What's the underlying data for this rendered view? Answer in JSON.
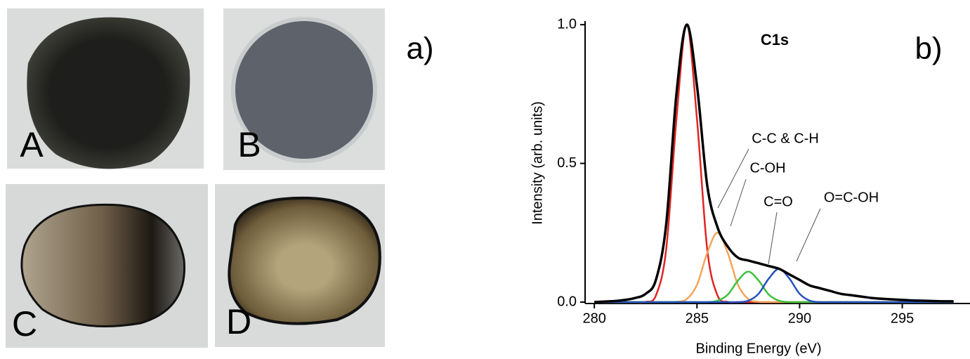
{
  "photos": {
    "panel_label": "a)",
    "samples": [
      "A",
      "B",
      "C",
      "D"
    ]
  },
  "chart_data": {
    "type": "line",
    "title": "C1s",
    "panel_label": "b)",
    "x_label": "Binding Energy (eV)",
    "y_label": "Intensity (arb. units)",
    "x": [
      280,
      280.5,
      281,
      281.5,
      282,
      282.5,
      283,
      283.5,
      284,
      284.5,
      285,
      285.5,
      286,
      286.5,
      287,
      287.5,
      288,
      288.5,
      289,
      289.5,
      290,
      290.5,
      291,
      291.5,
      292,
      292.5,
      293,
      293.5,
      294,
      294.5,
      295,
      295.5,
      296,
      296.5,
      297,
      297.5
    ],
    "series": [
      {
        "color": "#000000",
        "values": [
          0,
          0.002,
          0.004,
          0.008,
          0.015,
          0.03,
          0.08,
          0.28,
          0.75,
          1.0,
          0.78,
          0.42,
          0.27,
          0.2,
          0.16,
          0.15,
          0.14,
          0.13,
          0.12,
          0.1,
          0.08,
          0.06,
          0.05,
          0.04,
          0.03,
          0.025,
          0.02,
          0.015,
          0.012,
          0.01,
          0.008,
          0.006,
          0.005,
          0.004,
          0.003,
          0.003
        ]
      },
      {
        "name": "C-C & C-H",
        "color": "#e02424",
        "values": [
          0,
          0,
          0,
          0,
          0,
          0.001,
          0.024,
          0.19,
          0.66,
          1.0,
          0.66,
          0.19,
          0.024,
          0.001,
          0,
          0,
          0,
          0,
          0,
          0,
          0,
          0,
          0,
          0,
          0,
          0,
          0,
          0,
          0,
          0,
          0,
          0,
          0,
          0,
          0,
          0
        ]
      },
      {
        "name": "C-OH",
        "color": "#f4a55a",
        "values": [
          0,
          0,
          0,
          0,
          0,
          0,
          0,
          0,
          0.001,
          0.011,
          0.062,
          0.177,
          0.25,
          0.177,
          0.062,
          0.011,
          0.001,
          0,
          0,
          0,
          0,
          0,
          0,
          0,
          0,
          0,
          0,
          0,
          0,
          0,
          0,
          0,
          0,
          0,
          0,
          0
        ]
      },
      {
        "name": "C=O",
        "color": "#3cc03c",
        "values": [
          0,
          0,
          0,
          0,
          0,
          0,
          0,
          0,
          0,
          0,
          0,
          0,
          0.005,
          0.027,
          0.078,
          0.11,
          0.078,
          0.027,
          0.005,
          0,
          0,
          0,
          0,
          0,
          0,
          0,
          0,
          0,
          0,
          0,
          0,
          0,
          0,
          0,
          0,
          0
        ]
      },
      {
        "name": "O=C-OH",
        "color": "#2450c0",
        "values": [
          0,
          0,
          0,
          0,
          0,
          0,
          0,
          0,
          0,
          0,
          0,
          0,
          0,
          0,
          0,
          0.005,
          0.03,
          0.085,
          0.12,
          0.085,
          0.03,
          0.005,
          0,
          0,
          0,
          0,
          0,
          0,
          0,
          0,
          0,
          0,
          0,
          0,
          0,
          0
        ]
      }
    ],
    "xlim": [
      279.55,
      298.3
    ],
    "ylim": [
      -0.005,
      1.013
    ],
    "xticks": [
      280,
      285,
      290,
      295
    ],
    "yticks": [
      {
        "value": 0,
        "label": "0.0"
      },
      {
        "value": 0.5,
        "label": "0.5"
      },
      {
        "value": 1,
        "label": "1.0"
      }
    ]
  }
}
